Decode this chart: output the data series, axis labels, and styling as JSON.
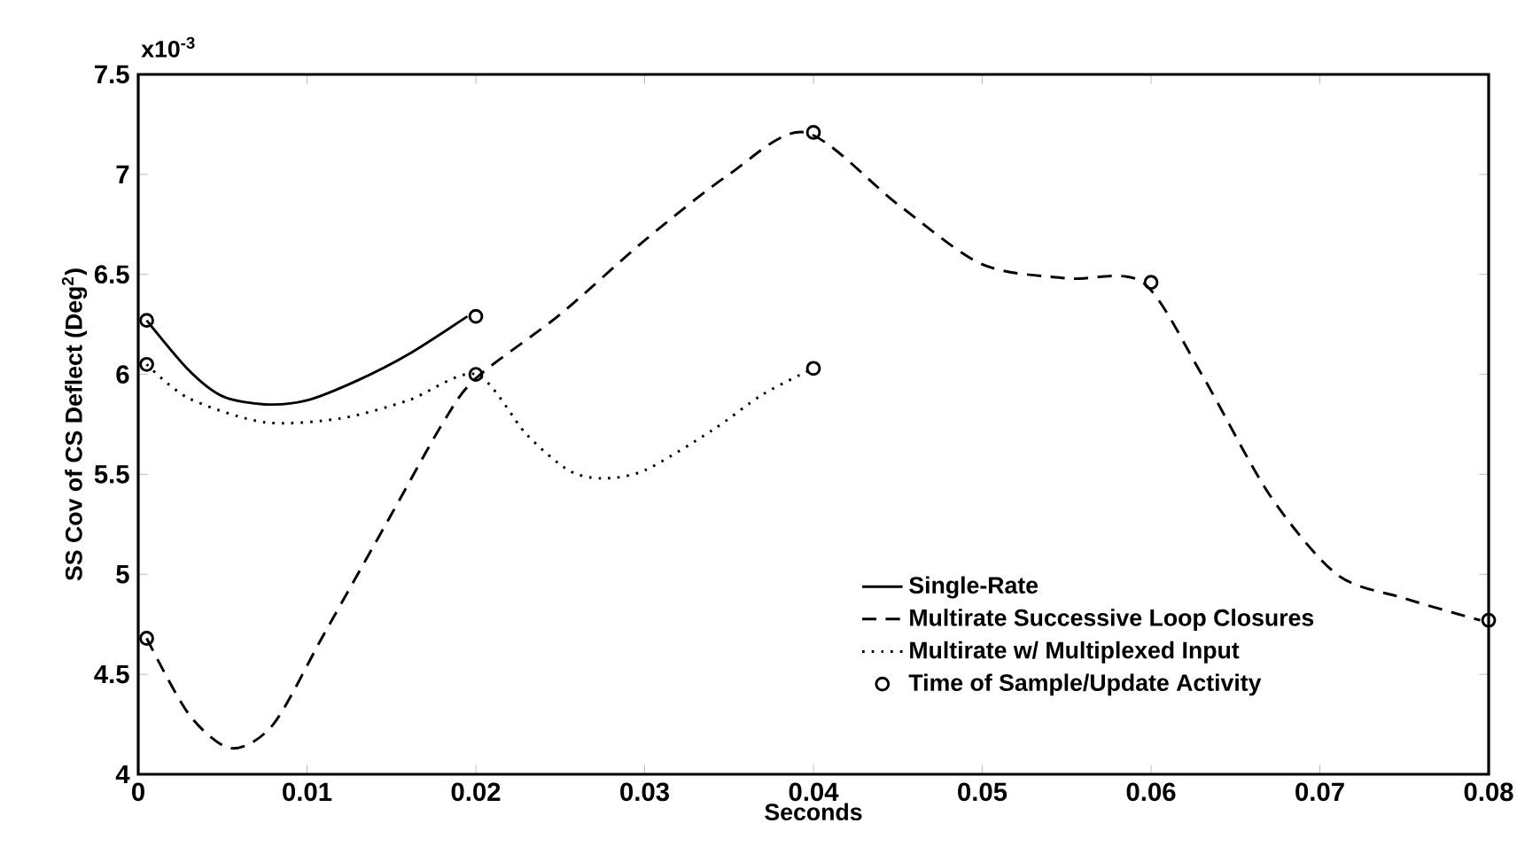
{
  "chart_data": {
    "type": "line",
    "xlabel": "Seconds",
    "ylabel": "SS Cov of CS Deflect (Deg$^{2}$)",
    "annotations": [
      "x10$^{-3}$"
    ],
    "xlim": [
      0,
      0.08
    ],
    "ylim": [
      4,
      7.5
    ],
    "xticks": [
      0,
      0.01,
      0.02,
      0.03,
      0.04,
      0.05,
      0.06,
      0.07,
      0.08
    ],
    "yticks": [
      4,
      4.5,
      5,
      5.5,
      6,
      6.5,
      7,
      7.5
    ],
    "legend": "bottom right",
    "series": [
      {
        "name": "Single-Rate",
        "color": "#000000",
        "line_style": "solid",
        "marker": "none",
        "x": [
          0.0005,
          0.003,
          0.005,
          0.0075,
          0.01,
          0.013,
          0.016,
          0.0195
        ],
        "values": [
          6.27,
          6.02,
          5.89,
          5.85,
          5.87,
          5.97,
          6.1,
          6.29
        ]
      },
      {
        "name": "Multirate Successive Loop Closures",
        "color": "#000000",
        "line_style": "dashed",
        "marker": "none",
        "x": [
          0.0005,
          0.003,
          0.0055,
          0.008,
          0.011,
          0.015,
          0.018,
          0.02,
          0.025,
          0.03,
          0.035,
          0.0395,
          0.045,
          0.05,
          0.055,
          0.0595,
          0.063,
          0.067,
          0.071,
          0.075,
          0.0795
        ],
        "values": [
          4.68,
          4.3,
          4.13,
          4.25,
          4.7,
          5.3,
          5.75,
          5.98,
          6.3,
          6.67,
          7.0,
          7.21,
          6.85,
          6.55,
          6.48,
          6.46,
          6.0,
          5.4,
          5.0,
          4.88,
          4.77
        ]
      },
      {
        "name": "Multirate w/ Multiplexed Input",
        "color": "#000000",
        "line_style": "dotted",
        "marker": "none",
        "x": [
          0.0005,
          0.003,
          0.0075,
          0.012,
          0.016,
          0.02,
          0.023,
          0.0255,
          0.0275,
          0.03,
          0.034,
          0.037,
          0.04
        ],
        "values": [
          6.05,
          5.88,
          5.76,
          5.78,
          5.87,
          6.0,
          5.7,
          5.52,
          5.48,
          5.52,
          5.72,
          5.9,
          6.03
        ]
      },
      {
        "name": "Time of Sample/Update Activity",
        "type": "scatter",
        "color": "#000000",
        "marker": "circle",
        "x": [
          0.0005,
          0.02,
          0.0005,
          0.02,
          0.04,
          0.0005,
          0.04,
          0.06,
          0.08
        ],
        "values": [
          6.27,
          6.29,
          6.05,
          6.0,
          6.03,
          4.68,
          7.21,
          6.46,
          4.77
        ]
      }
    ]
  }
}
